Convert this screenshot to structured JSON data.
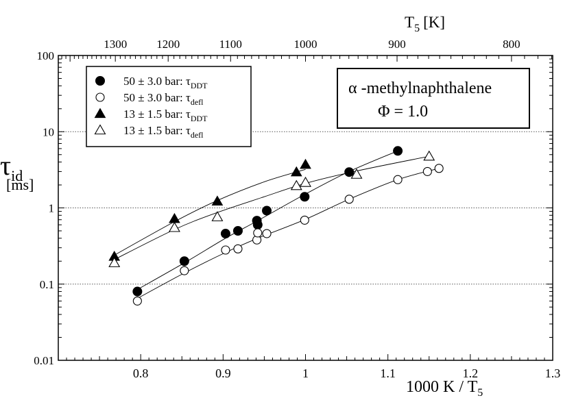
{
  "chart_data": {
    "type": "scatter",
    "x_scale": "linear",
    "y_scale": "log",
    "xlim": [
      0.7,
      1.3
    ],
    "ylim": [
      0.01,
      100
    ],
    "xlabel": "1000 K / T",
    "xlabel_sub": "5",
    "ylabel": "τ",
    "ylabel_sub": "id",
    "ylabel_unit": "[ms]",
    "top_axis_label": "T",
    "top_axis_label_sub": "5",
    "top_axis_label_unit": "[K]",
    "x_ticks": [
      {
        "value": 0.8,
        "label": "0.8"
      },
      {
        "value": 0.9,
        "label": "0.9"
      },
      {
        "value": 1.0,
        "label": "1"
      },
      {
        "value": 1.1,
        "label": "1.1"
      },
      {
        "value": 1.2,
        "label": "1.2"
      },
      {
        "value": 1.3,
        "label": "1.3"
      }
    ],
    "y_ticks": [
      {
        "value": 0.01,
        "label": "0.01"
      },
      {
        "value": 0.1,
        "label": "0.1"
      },
      {
        "value": 1,
        "label": "1"
      },
      {
        "value": 10,
        "label": "10"
      },
      {
        "value": 100,
        "label": "100"
      }
    ],
    "top_ticks": [
      {
        "value": 1300,
        "label": "1300"
      },
      {
        "value": 1200,
        "label": "1200"
      },
      {
        "value": 1100,
        "label": "1100"
      },
      {
        "value": 1000,
        "label": "1000"
      },
      {
        "value": 900,
        "label": "900"
      },
      {
        "value": 800,
        "label": "800"
      }
    ],
    "grid": "horizontal dotted at 0.1, 1 and 10",
    "legend_position": "top-left",
    "annotation": {
      "compound": "α -methylnaphthalene",
      "phi": "Φ = 1.0"
    },
    "series": [
      {
        "name": "50 ± 3.0 bar: τ",
        "name_sub": "DDT",
        "marker": "filled-circle",
        "points": [
          [
            0.796,
            0.08
          ],
          [
            0.853,
            0.2
          ],
          [
            0.903,
            0.46
          ],
          [
            0.918,
            0.5
          ],
          [
            0.941,
            0.68
          ],
          [
            0.942,
            0.6
          ],
          [
            0.953,
            0.92
          ],
          [
            0.999,
            1.4
          ],
          [
            1.053,
            2.95
          ],
          [
            1.112,
            5.6
          ]
        ],
        "curve": [
          [
            0.796,
            0.085
          ],
          [
            0.853,
            0.19
          ],
          [
            0.903,
            0.4
          ],
          [
            0.942,
            0.68
          ],
          [
            0.999,
            1.5
          ],
          [
            1.053,
            3.0
          ],
          [
            1.112,
            5.6
          ]
        ]
      },
      {
        "name": "50 ± 3.0 bar: τ",
        "name_sub": "defl",
        "marker": "open-circle",
        "points": [
          [
            0.796,
            0.06
          ],
          [
            0.853,
            0.15
          ],
          [
            0.903,
            0.28
          ],
          [
            0.918,
            0.29
          ],
          [
            0.941,
            0.38
          ],
          [
            0.942,
            0.47
          ],
          [
            0.953,
            0.46
          ],
          [
            0.999,
            0.69
          ],
          [
            1.053,
            1.3
          ],
          [
            1.112,
            2.35
          ],
          [
            1.148,
            3.0
          ],
          [
            1.162,
            3.3
          ]
        ],
        "curve": [
          [
            0.796,
            0.065
          ],
          [
            0.853,
            0.14
          ],
          [
            0.903,
            0.26
          ],
          [
            0.942,
            0.4
          ],
          [
            0.999,
            0.7
          ],
          [
            1.053,
            1.3
          ],
          [
            1.112,
            2.35
          ],
          [
            1.162,
            3.3
          ]
        ]
      },
      {
        "name": "13 ± 1.5 bar: τ",
        "name_sub": "DDT",
        "marker": "filled-triangle",
        "points": [
          [
            0.768,
            0.23
          ],
          [
            0.841,
            0.72
          ],
          [
            0.893,
            1.22
          ],
          [
            0.989,
            2.95
          ],
          [
            1.0,
            3.7
          ]
        ],
        "curve": [
          [
            0.768,
            0.24
          ],
          [
            0.841,
            0.66
          ],
          [
            0.893,
            1.25
          ],
          [
            0.95,
            2.2
          ],
          [
            1.0,
            3.2
          ]
        ]
      },
      {
        "name": "13 ± 1.5 bar: τ",
        "name_sub": "defl",
        "marker": "open-triangle",
        "points": [
          [
            0.768,
            0.19
          ],
          [
            0.841,
            0.55
          ],
          [
            0.893,
            0.76
          ],
          [
            0.989,
            1.95
          ],
          [
            1.0,
            2.15
          ],
          [
            1.062,
            2.75
          ],
          [
            1.15,
            4.75
          ]
        ],
        "curve": [
          [
            0.768,
            0.21
          ],
          [
            0.841,
            0.52
          ],
          [
            0.893,
            0.87
          ],
          [
            0.95,
            1.4
          ],
          [
            1.0,
            2.1
          ],
          [
            1.062,
            3.05
          ],
          [
            1.15,
            4.75
          ]
        ]
      }
    ]
  }
}
